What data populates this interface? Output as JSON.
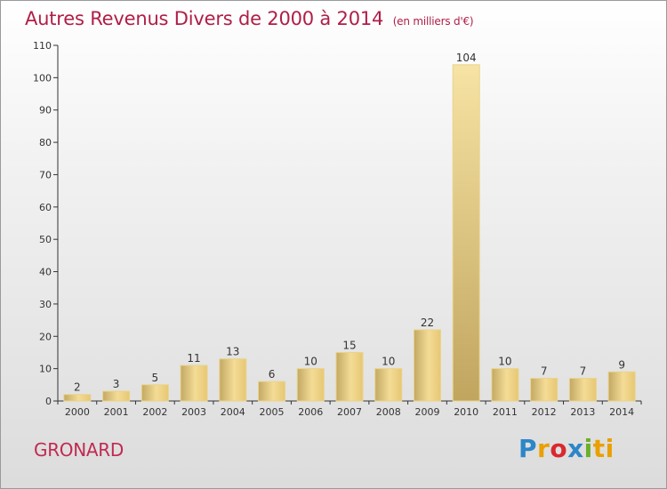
{
  "header": {
    "title": "Autres Revenus Divers de 2000 à 2014",
    "unit": "(en milliers d'€)"
  },
  "footer": {
    "commune": "GRONARD",
    "brand": "Proxiti",
    "brand_letters": [
      "P",
      "r",
      "o",
      "x",
      "i",
      "ti"
    ]
  },
  "colors": {
    "title": "#b01e47",
    "bar_light": "#f4dc96",
    "bar_dark": "#c2a863",
    "axis": "#333333"
  },
  "chart_data": {
    "type": "bar",
    "title": "Autres Revenus Divers de 2000 à 2014",
    "subtitle": "(en milliers d'€)",
    "categories": [
      "2000",
      "2001",
      "2002",
      "2003",
      "2004",
      "2005",
      "2006",
      "2007",
      "2008",
      "2009",
      "2010",
      "2011",
      "2012",
      "2013",
      "2014"
    ],
    "values": [
      2,
      3,
      5,
      11,
      13,
      6,
      10,
      15,
      10,
      22,
      104,
      10,
      7,
      7,
      9
    ],
    "ylim": [
      0,
      110
    ],
    "yticks": [
      0,
      10,
      20,
      30,
      40,
      50,
      60,
      70,
      80,
      90,
      100,
      110
    ],
    "xlabel": "",
    "ylabel": "",
    "grid": false,
    "legend": "none"
  }
}
